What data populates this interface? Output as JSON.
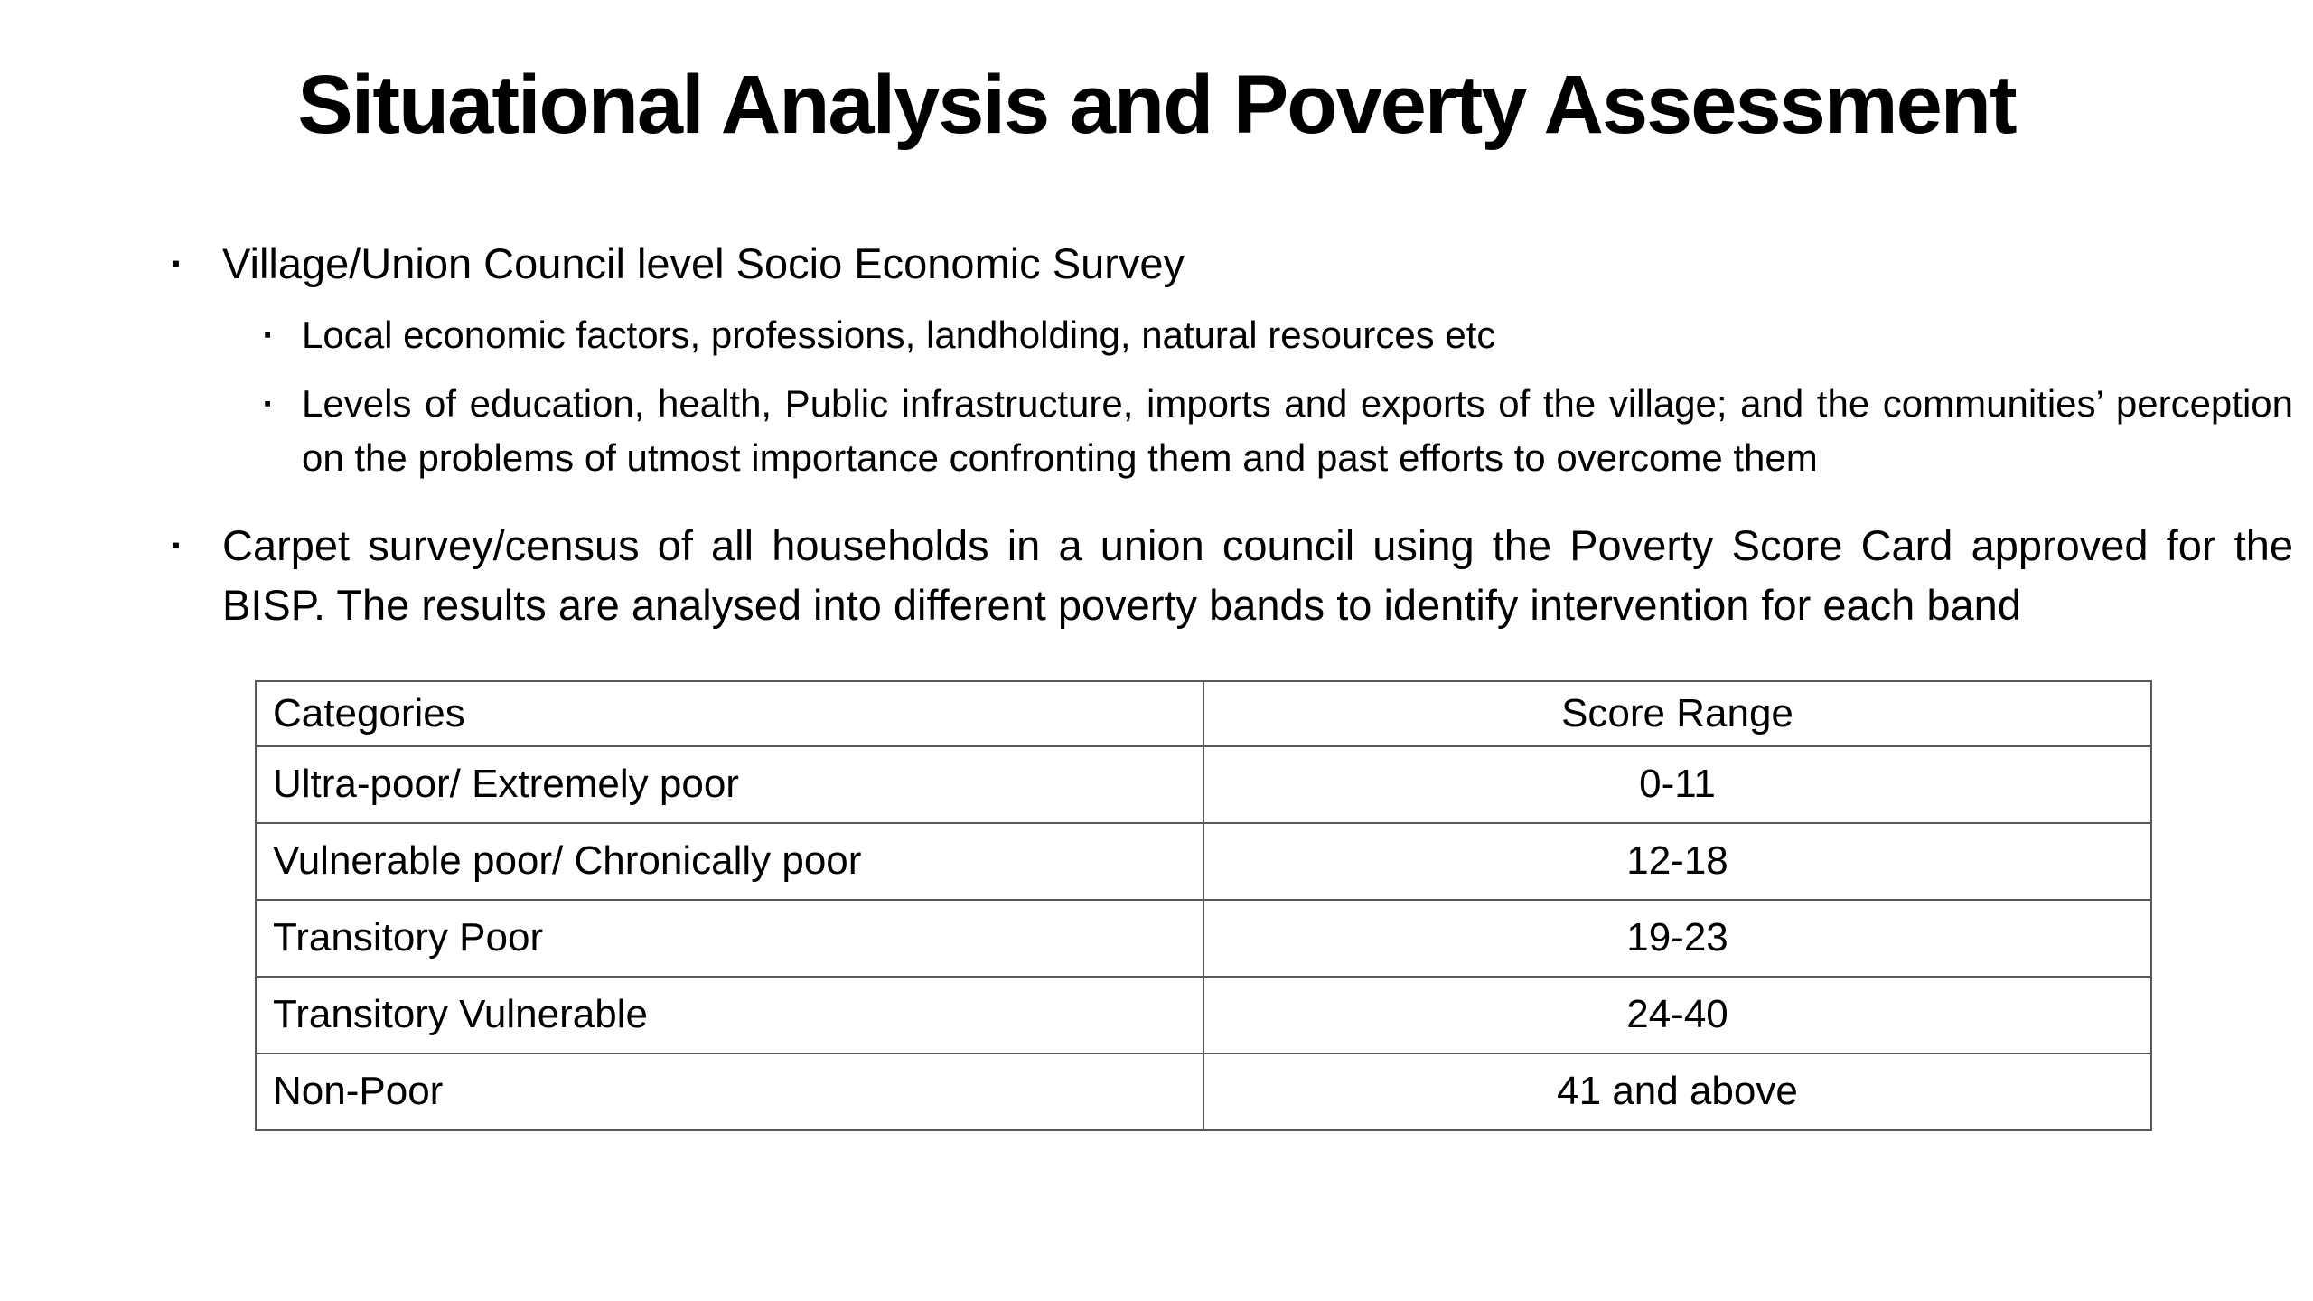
{
  "slide": {
    "title": "Situational Analysis and Poverty Assessment",
    "bullets": [
      {
        "text": "Village/Union Council level Socio Economic Survey",
        "sub": [
          "Local economic factors, professions, landholding, natural resources etc",
          "Levels of education, health, Public infrastructure, imports and exports of the village; and the communities’ perception on the problems of utmost importance confronting them and past efforts to overcome them"
        ]
      },
      {
        "text": "Carpet survey/census of all households in a union council using the Poverty Score Card approved for the BISP. The results are analysed into different poverty bands to identify intervention for each band",
        "sub": []
      }
    ],
    "table": {
      "headers": [
        "Categories",
        "Score Range"
      ],
      "rows": [
        [
          "Ultra-poor/ Extremely poor",
          "0-11"
        ],
        [
          "Vulnerable poor/ Chronically poor",
          "12-18"
        ],
        [
          "Transitory Poor",
          "19-23"
        ],
        [
          "Transitory Vulnerable",
          "24-40"
        ],
        [
          "Non-Poor",
          "41 and above"
        ]
      ]
    }
  }
}
